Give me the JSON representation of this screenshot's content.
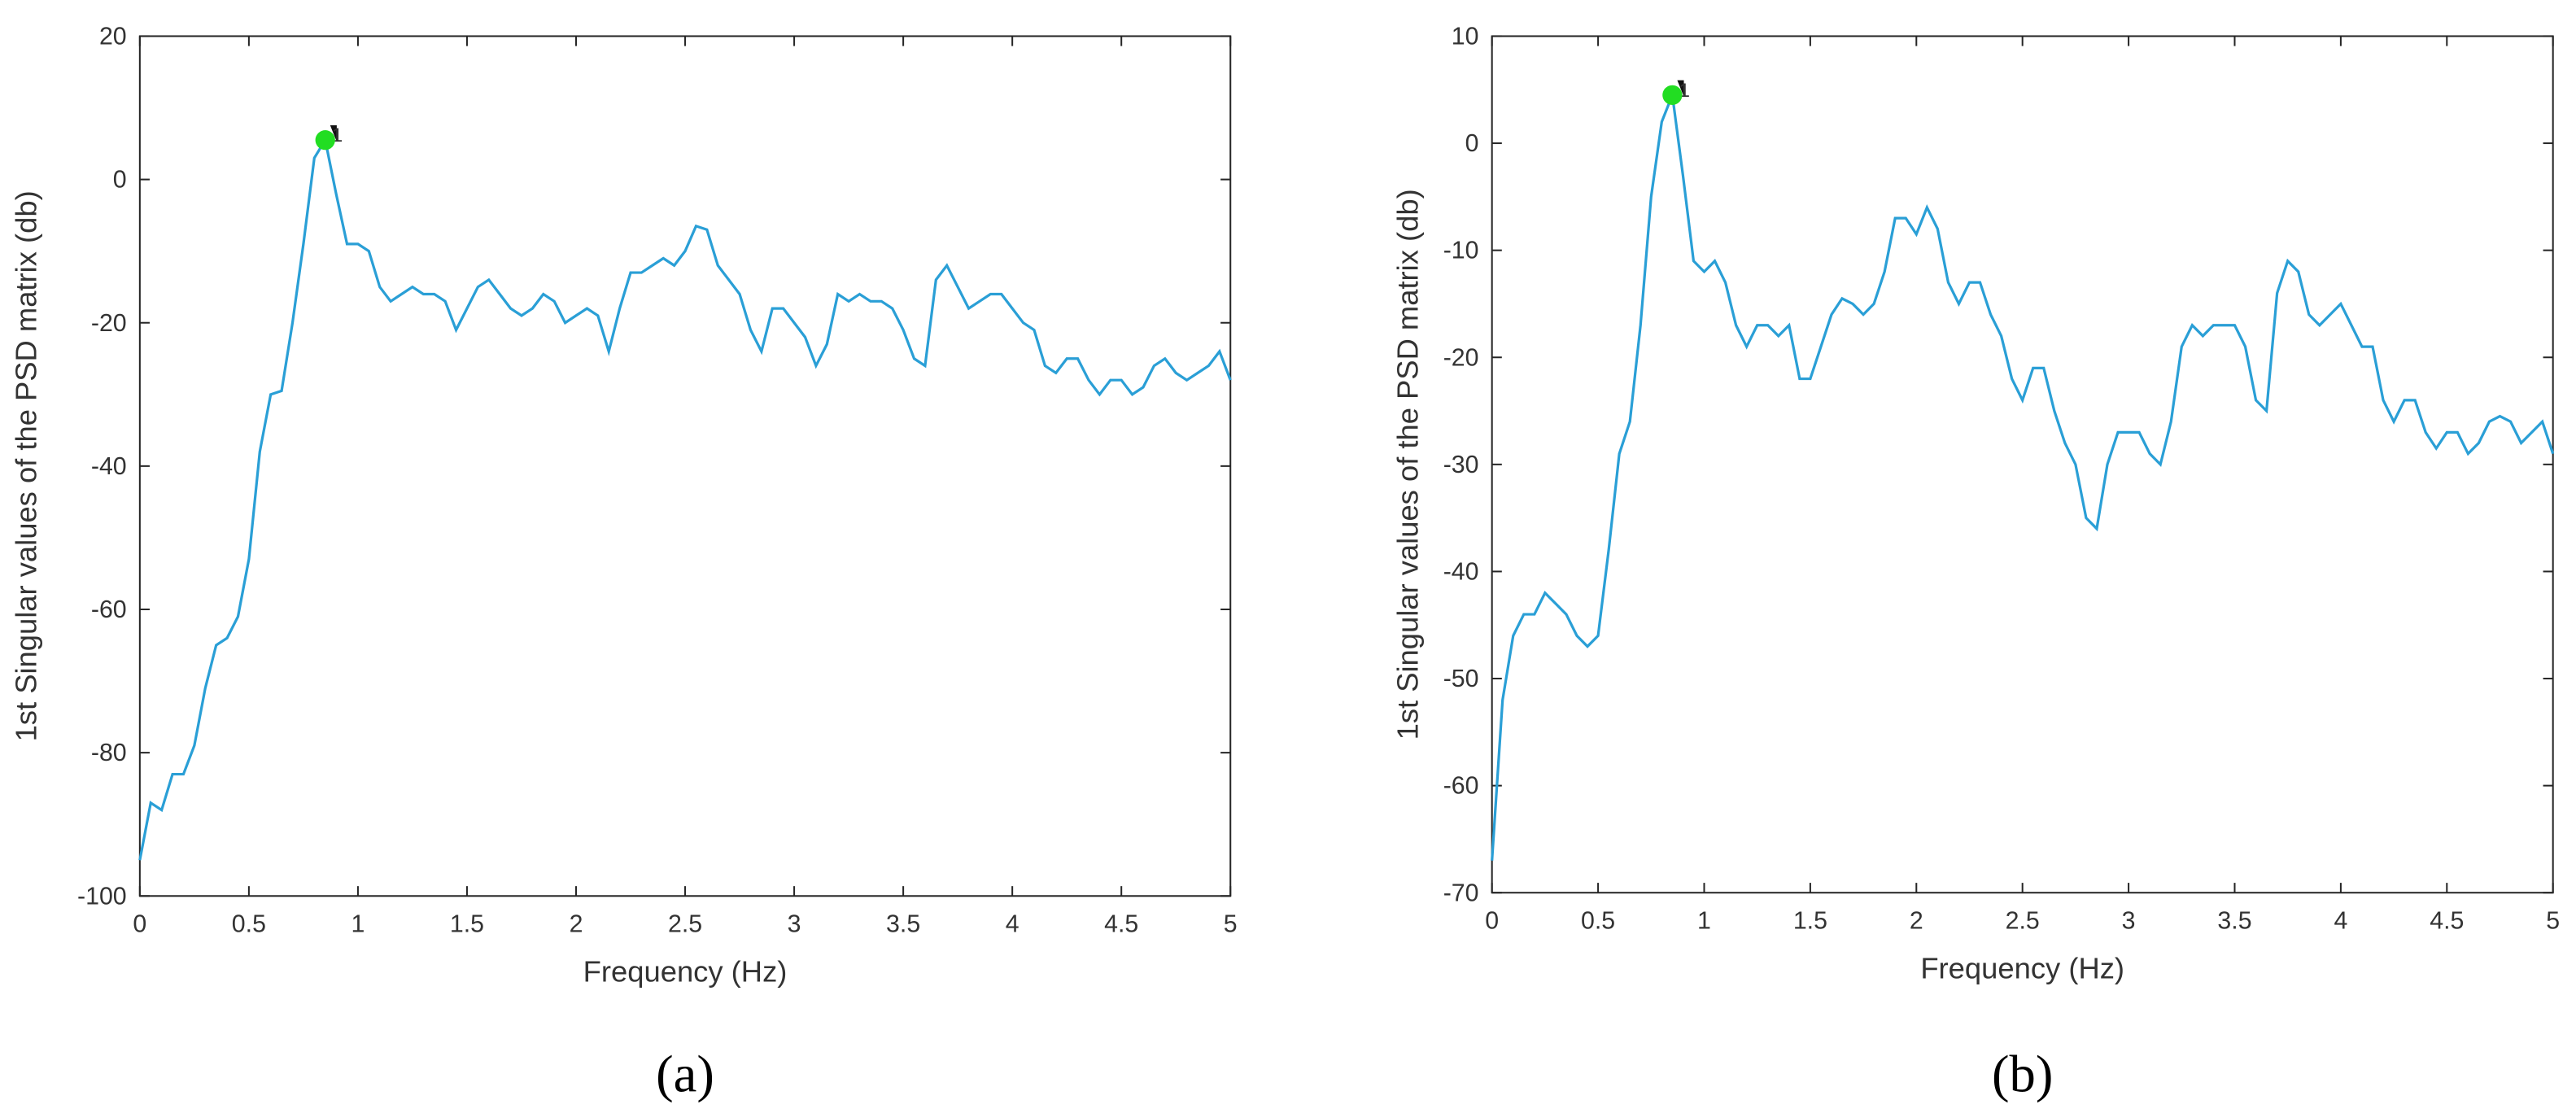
{
  "chart_data": [
    {
      "type": "line",
      "label": "(a)",
      "xlabel": "Frequency (Hz)",
      "ylabel": "1st Singular values of the PSD matrix (db)",
      "xlim": [
        0,
        5
      ],
      "xticks": [
        0,
        0.5,
        1,
        1.5,
        2,
        2.5,
        3,
        3.5,
        4,
        4.5,
        5
      ],
      "ylim": [
        -100,
        20
      ],
      "yticks": [
        -100,
        -80,
        -60,
        -40,
        -20,
        0,
        20
      ],
      "x": [
        0,
        0.05,
        0.1,
        0.15,
        0.2,
        0.25,
        0.3,
        0.35,
        0.4,
        0.45,
        0.5,
        0.55,
        0.6,
        0.65,
        0.7,
        0.75,
        0.8,
        0.85,
        0.9,
        0.95,
        1,
        1.05,
        1.1,
        1.15,
        1.2,
        1.25,
        1.3,
        1.35,
        1.4,
        1.45,
        1.5,
        1.55,
        1.6,
        1.65,
        1.7,
        1.75,
        1.8,
        1.85,
        1.9,
        1.95,
        2,
        2.05,
        2.1,
        2.15,
        2.2,
        2.25,
        2.3,
        2.35,
        2.4,
        2.45,
        2.5,
        2.55,
        2.6,
        2.65,
        2.7,
        2.75,
        2.8,
        2.85,
        2.9,
        2.95,
        3,
        3.05,
        3.1,
        3.15,
        3.2,
        3.25,
        3.3,
        3.35,
        3.4,
        3.45,
        3.5,
        3.55,
        3.6,
        3.65,
        3.7,
        3.75,
        3.8,
        3.85,
        3.9,
        3.95,
        4,
        4.05,
        4.1,
        4.15,
        4.2,
        4.25,
        4.3,
        4.35,
        4.4,
        4.45,
        4.5,
        4.55,
        4.6,
        4.65,
        4.7,
        4.75,
        4.8,
        4.85,
        4.9,
        4.95,
        5
      ],
      "series": [
        {
          "color": "#2a9fd6",
          "values": [
            -95,
            -87,
            -88,
            -83,
            -83,
            -79,
            -71,
            -65,
            -64,
            -61,
            -53,
            -38,
            -30,
            -29.5,
            -20,
            -9,
            3,
            5.5,
            -2,
            -9,
            -9,
            -10,
            -15,
            -17,
            -16,
            -15,
            -16,
            -16,
            -17,
            -21,
            -18,
            -15,
            -14,
            -16,
            -18,
            -19,
            -18,
            -16,
            -17,
            -20,
            -19,
            -18,
            -19,
            -24,
            -18,
            -13,
            -13,
            -12,
            -11,
            -12,
            -10,
            -6.5,
            -7,
            -12,
            -14,
            -16,
            -21,
            -24,
            -18,
            -18,
            -20,
            -22,
            -26,
            -23,
            -16,
            -17,
            -16,
            -17,
            -17,
            -18,
            -21,
            -25,
            -26,
            -14,
            -12,
            -15,
            -18,
            -17,
            -16,
            -16,
            -18,
            -20,
            -21,
            -26,
            -27,
            -25,
            -25,
            -28,
            -30,
            -28,
            -28,
            -30,
            -29,
            -26,
            -25,
            -27,
            -28,
            -27,
            -26,
            -24,
            -28
          ]
        }
      ],
      "marker": {
        "x": 0.85,
        "y": 5.5,
        "label": "1",
        "color": "#22dd22"
      }
    },
    {
      "type": "line",
      "label": "(b)",
      "xlabel": "Frequency (Hz)",
      "ylabel": "1st Singular values of the PSD matrix (db)",
      "xlim": [
        0,
        5
      ],
      "xticks": [
        0,
        0.5,
        1,
        1.5,
        2,
        2.5,
        3,
        3.5,
        4,
        4.5,
        5
      ],
      "ylim": [
        -70,
        10
      ],
      "yticks": [
        -70,
        -60,
        -50,
        -40,
        -30,
        -20,
        -10,
        0,
        10
      ],
      "x": [
        0,
        0.05,
        0.1,
        0.15,
        0.2,
        0.25,
        0.3,
        0.35,
        0.4,
        0.45,
        0.5,
        0.55,
        0.6,
        0.65,
        0.7,
        0.75,
        0.8,
        0.85,
        0.9,
        0.95,
        1,
        1.05,
        1.1,
        1.15,
        1.2,
        1.25,
        1.3,
        1.35,
        1.4,
        1.45,
        1.5,
        1.55,
        1.6,
        1.65,
        1.7,
        1.75,
        1.8,
        1.85,
        1.9,
        1.95,
        2,
        2.05,
        2.1,
        2.15,
        2.2,
        2.25,
        2.3,
        2.35,
        2.4,
        2.45,
        2.5,
        2.55,
        2.6,
        2.65,
        2.7,
        2.75,
        2.8,
        2.85,
        2.9,
        2.95,
        3,
        3.05,
        3.1,
        3.15,
        3.2,
        3.25,
        3.3,
        3.35,
        3.4,
        3.45,
        3.5,
        3.55,
        3.6,
        3.65,
        3.7,
        3.75,
        3.8,
        3.85,
        3.9,
        3.95,
        4,
        4.05,
        4.1,
        4.15,
        4.2,
        4.25,
        4.3,
        4.35,
        4.4,
        4.45,
        4.5,
        4.55,
        4.6,
        4.65,
        4.7,
        4.75,
        4.8,
        4.85,
        4.9,
        4.95,
        5
      ],
      "series": [
        {
          "color": "#2a9fd6",
          "values": [
            -67,
            -52,
            -46,
            -44,
            -44,
            -42,
            -43,
            -44,
            -46,
            -47,
            -46,
            -38,
            -29,
            -26,
            -17,
            -5,
            2,
            4.5,
            -3,
            -11,
            -12,
            -11,
            -13,
            -17,
            -19,
            -17,
            -17,
            -18,
            -17,
            -22,
            -22,
            -19,
            -16,
            -14.5,
            -15,
            -16,
            -15,
            -12,
            -7,
            -7,
            -8.5,
            -6,
            -8,
            -13,
            -15,
            -13,
            -13,
            -16,
            -18,
            -22,
            -24,
            -21,
            -21,
            -25,
            -28,
            -30,
            -35,
            -36,
            -30,
            -27,
            -27,
            -27,
            -29,
            -30,
            -26,
            -19,
            -17,
            -18,
            -17,
            -17,
            -17,
            -19,
            -24,
            -25,
            -14,
            -11,
            -12,
            -16,
            -17,
            -16,
            -15,
            -17,
            -19,
            -19,
            -24,
            -26,
            -24,
            -24,
            -27,
            -28.5,
            -27,
            -27,
            -29,
            -28,
            -26,
            -25.5,
            -26,
            -28,
            -27,
            -26,
            -29
          ]
        }
      ],
      "marker": {
        "x": 0.85,
        "y": 4.5,
        "label": "1",
        "color": "#22dd22"
      }
    }
  ]
}
